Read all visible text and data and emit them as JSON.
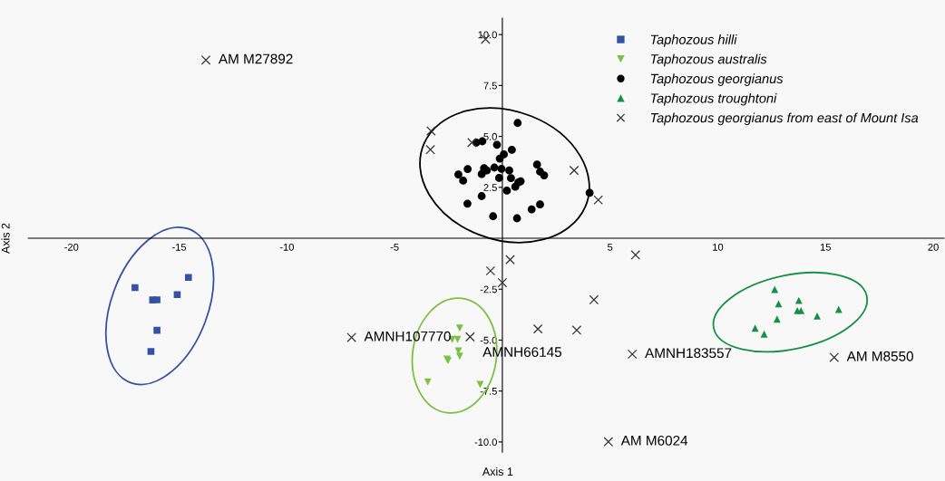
{
  "chart_data": {
    "type": "scatter",
    "xlabel": "Axis 1",
    "ylabel": "Axis 2",
    "xlim": [
      -22,
      20.5
    ],
    "ylim": [
      -10.5,
      10.8
    ],
    "xticks": [
      -20,
      -15,
      -10,
      -5,
      5,
      10,
      15,
      20
    ],
    "yticks": [
      {
        "value": -10,
        "label": "-10.0"
      },
      {
        "value": -7.5,
        "label": "-7.5"
      },
      {
        "value": -5,
        "label": "-5.0"
      },
      {
        "value": -2.5,
        "label": "-2.5"
      },
      2.5,
      {
        "value": 5,
        "label": "5.0"
      },
      7.5,
      {
        "value": 10,
        "label": "10.0"
      }
    ],
    "grid": false,
    "legend": "top right",
    "series": [
      {
        "name": "Taphozous hilli",
        "color": "#3352a4",
        "marker": "square",
        "x": [
          -17.05,
          -14.57,
          -15.09,
          -16.23,
          -16.03,
          -16.03,
          -16.31
        ],
        "values": [
          -2.42,
          -1.92,
          -2.77,
          -3.03,
          -3.02,
          -4.52,
          -5.56
        ]
      },
      {
        "name": "Taphozous australis",
        "color": "#7ac143",
        "marker": "triangle_down",
        "x": [
          -1.98,
          -2.33,
          -2.08,
          -2.04,
          -1.98,
          -2.52,
          -2.57,
          -3.46,
          -1.03
        ],
        "values": [
          -4.41,
          -4.97,
          -4.97,
          -5.53,
          -5.79,
          -6.01,
          -5.93,
          -7.05,
          -7.18
        ]
      },
      {
        "name": "Taphozous georgianus",
        "color": "#000000",
        "marker": "circle",
        "x": [
          0.71,
          -1.21,
          -0.93,
          -0.25,
          0.44,
          0.07,
          -0.12,
          -1.61,
          -2.04,
          -1.82,
          -0.85,
          -0.72,
          -0.96,
          -0.37,
          -0.04,
          0.32,
          -0.15,
          0.4,
          1.61,
          1.75,
          1.94,
          0.85,
          0.74,
          0.6,
          0.21,
          -0.96,
          -1.62,
          -0.43,
          0.68,
          1.36,
          1.75,
          4.05
        ],
        "values": [
          5.66,
          4.7,
          4.76,
          4.59,
          4.34,
          4.12,
          3.91,
          3.4,
          3.13,
          2.83,
          3.44,
          3.33,
          3.15,
          3.47,
          3.41,
          3.33,
          2.96,
          2.95,
          3.62,
          3.27,
          3.09,
          2.8,
          2.74,
          2.53,
          2.34,
          2.07,
          1.7,
          1.08,
          0.98,
          1.42,
          1.66,
          2.23
        ]
      },
      {
        "name": "Taphozous troughtoni",
        "color": "#149145",
        "marker": "triangle",
        "x": [
          12.64,
          13.76,
          12.82,
          13.69,
          13.86,
          15.61,
          14.61,
          12.75,
          11.73,
          12.15
        ],
        "values": [
          -2.51,
          -3.05,
          -3.22,
          -3.55,
          -3.55,
          -3.49,
          -3.82,
          -3.97,
          -4.41,
          -4.7
        ]
      },
      {
        "name": "Taphozous georgianus from east of Mount Isa",
        "color": "#333333",
        "marker": "cross",
        "x": [
          -13.76,
          -0.78,
          -3.31,
          -3.34,
          -1.41,
          3.33,
          4.45,
          -0.55,
          0.36,
          0.0,
          6.18,
          4.25,
          1.65,
          3.45,
          -1.5,
          6.03,
          4.92,
          -7.0,
          15.4
        ],
        "values": [
          8.75,
          9.77,
          5.27,
          4.35,
          4.7,
          3.33,
          1.88,
          -1.6,
          -1.05,
          -2.18,
          -0.82,
          -3.02,
          -4.45,
          -4.51,
          -4.84,
          -5.69,
          -9.99,
          -4.87,
          -5.85
        ]
      }
    ],
    "annotations": [
      {
        "text": "AM M27892",
        "x": -13.76,
        "y": 8.75
      },
      {
        "text": "AMNH107770",
        "x": -7.0,
        "y": -4.87
      },
      {
        "text": "AMNH66145",
        "x": -1.5,
        "y": -4.84
      },
      {
        "text": "AMNH183557",
        "x": 6.03,
        "y": -5.69
      },
      {
        "text": "AM M8550",
        "x": 15.4,
        "y": -5.85
      },
      {
        "text": "AM M6024",
        "x": 4.92,
        "y": -9.99
      }
    ]
  }
}
